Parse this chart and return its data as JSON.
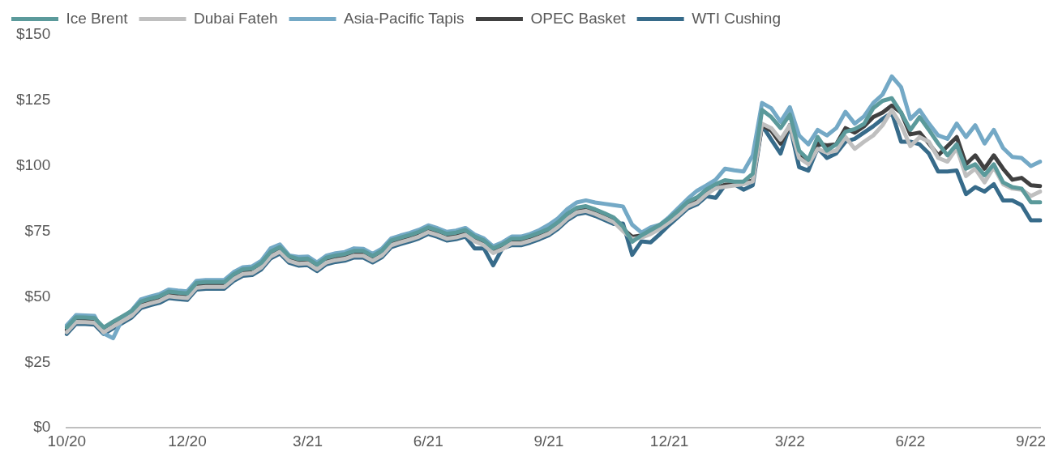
{
  "chart_data": {
    "type": "line",
    "legend": "top",
    "grid": false,
    "categories": [
      "10/20",
      null,
      null,
      null,
      null,
      null,
      null,
      null,
      null,
      null,
      null,
      null,
      null,
      "12/20",
      null,
      null,
      null,
      null,
      null,
      null,
      null,
      null,
      null,
      null,
      null,
      null,
      "3/21",
      null,
      null,
      null,
      null,
      null,
      null,
      null,
      null,
      null,
      null,
      null,
      null,
      "6/21",
      null,
      null,
      null,
      null,
      null,
      null,
      null,
      null,
      null,
      null,
      null,
      null,
      "9/21",
      null,
      null,
      null,
      null,
      null,
      null,
      null,
      null,
      null,
      null,
      null,
      null,
      "12/21",
      null,
      null,
      null,
      null,
      null,
      null,
      null,
      null,
      null,
      null,
      null,
      null,
      "3/22",
      null,
      null,
      null,
      null,
      null,
      null,
      null,
      null,
      null,
      null,
      null,
      null,
      "6/22",
      null,
      null,
      null,
      null,
      null,
      null,
      null,
      null,
      null,
      null,
      null,
      null,
      "9/22",
      null
    ],
    "ylim": [
      0,
      150
    ],
    "yticks": [
      {
        "value": 0,
        "label": "$0"
      },
      {
        "value": 25,
        "label": "$25"
      },
      {
        "value": 50,
        "label": "$50"
      },
      {
        "value": 75,
        "label": "$75"
      },
      {
        "value": 100,
        "label": "$100"
      },
      {
        "value": 125,
        "label": "$125"
      },
      {
        "value": 150,
        "label": "$150"
      }
    ],
    "series": [
      {
        "name": "Ice Brent",
        "color": "#5b9a9b",
        "values": [
          38.3,
          42.2,
          42.1,
          41.9,
          38.3,
          40.5,
          42.5,
          44.6,
          48.2,
          49.3,
          50.2,
          52,
          51.6,
          51.3,
          55.3,
          55.6,
          55.6,
          55.6,
          58.6,
          60.5,
          60.8,
          63,
          67.2,
          69,
          65.5,
          64.4,
          64.6,
          62.3,
          64.9,
          65.8,
          66.3,
          67.5,
          67.5,
          65.6,
          67.6,
          71.5,
          72.6,
          73.6,
          74.8,
          76.5,
          75.4,
          74,
          74.5,
          75.5,
          73,
          71.5,
          68.5,
          70,
          72.2,
          72.2,
          73.2,
          74.5,
          76,
          78.5,
          81.7,
          84,
          84.6,
          83.4,
          81.9,
          80.3,
          76.9,
          71,
          73.5,
          75.5,
          77.5,
          80,
          83,
          86.3,
          88,
          91,
          93,
          94.5,
          94,
          94,
          97,
          121.3,
          118.6,
          114.4,
          119.6,
          105.8,
          102.3,
          111,
          105.8,
          108.2,
          113,
          114,
          116,
          122,
          124.8,
          125.8,
          120.3,
          113.7,
          118.6,
          113.7,
          108.5,
          104,
          108.2,
          98.9,
          100.6,
          96.4,
          100.6,
          93.7,
          91.9,
          91.3,
          86.1,
          86.1
        ]
      },
      {
        "name": "Dubai Fateh",
        "color": "#bfbfbf",
        "values": [
          36.5,
          40.4,
          40.3,
          40.1,
          36.5,
          38.7,
          40.7,
          42.8,
          46.4,
          47.5,
          48.4,
          50.2,
          49.8,
          49.5,
          53.5,
          53.8,
          53.8,
          53.8,
          56.8,
          58.7,
          59,
          61.2,
          65.4,
          67.2,
          63.7,
          62.6,
          62.8,
          60.5,
          63.1,
          64,
          64.5,
          65.7,
          65.7,
          63.8,
          65.8,
          69.7,
          70.8,
          71.8,
          73,
          74.7,
          73.6,
          72.2,
          72.7,
          73.7,
          71.2,
          69.7,
          66.7,
          68.2,
          70.4,
          70.4,
          71.4,
          72.7,
          74.2,
          76.7,
          79.9,
          82.2,
          82.8,
          81.6,
          80.1,
          78.5,
          75.1,
          72.1,
          72.6,
          74,
          76,
          78.5,
          81.3,
          84.5,
          86,
          89.1,
          91.5,
          92,
          92.5,
          93,
          94,
          116.1,
          114.4,
          110,
          115.5,
          103,
          100.6,
          106.5,
          105,
          105.8,
          111,
          106.5,
          109.2,
          111.6,
          115.5,
          121.3,
          115.5,
          107.5,
          111,
          109.2,
          103,
          101.6,
          106.8,
          96.1,
          98.9,
          93.7,
          99.5,
          93,
          91.3,
          90.9,
          88.5,
          90.2
        ]
      },
      {
        "name": "Asia-Pacific Tapis",
        "color": "#74a9c6",
        "values": [
          39.1,
          43,
          42.9,
          42.7,
          36,
          34.2,
          41.5,
          44.8,
          49,
          50.1,
          51,
          52.8,
          52.4,
          52.1,
          56.1,
          56.4,
          56.4,
          56.4,
          59.4,
          61.3,
          61.6,
          63.8,
          68.5,
          70,
          65.8,
          65.2,
          65.4,
          63.1,
          65.7,
          66.6,
          67.1,
          68.5,
          68.3,
          66.4,
          68.4,
          72.3,
          73.4,
          74.4,
          75.6,
          77.3,
          76.2,
          74.8,
          75.3,
          76.3,
          73.8,
          72.3,
          69.3,
          70.8,
          73,
          73,
          74,
          75.5,
          77.5,
          80,
          83.5,
          86,
          86.8,
          86,
          85.5,
          85,
          84.5,
          77.5,
          74.5,
          76.5,
          77.5,
          80.5,
          84,
          87.5,
          90.5,
          92.5,
          94.7,
          98.9,
          98.3,
          97.8,
          104,
          124,
          122,
          116.8,
          122.4,
          111.6,
          108.2,
          113.7,
          111.6,
          114.4,
          120.6,
          116.1,
          118.9,
          124,
          127.2,
          134.1,
          130,
          117.9,
          121.3,
          116.1,
          111.6,
          110.3,
          116.1,
          111,
          115.5,
          108.5,
          113.7,
          106.8,
          103.4,
          103,
          99.9,
          101.6
        ]
      },
      {
        "name": "OPEC Basket",
        "color": "#404040",
        "values": [
          37.3,
          41.2,
          41.1,
          40.9,
          37.3,
          39.5,
          41.5,
          43.6,
          47.2,
          48.3,
          49.2,
          51,
          50.6,
          50.3,
          54.3,
          54.6,
          54.6,
          54.6,
          57.6,
          59.5,
          59.8,
          62,
          66.2,
          68,
          64.5,
          63.4,
          63.6,
          61.3,
          63.9,
          64.8,
          65.3,
          66.5,
          66.5,
          64.6,
          66.6,
          70.5,
          71.6,
          72.6,
          73.8,
          75.5,
          74.4,
          73,
          73.5,
          74.5,
          72,
          70.5,
          67.5,
          69,
          71.2,
          71.2,
          72.2,
          73.5,
          75,
          77.5,
          80.7,
          83,
          83.6,
          82.4,
          80.9,
          79.3,
          75.9,
          72.9,
          73.4,
          74.8,
          76.8,
          79.3,
          82.1,
          85.3,
          86.8,
          89.9,
          91.5,
          92.8,
          93,
          93.7,
          94.4,
          115.5,
          113.4,
          108.5,
          115.5,
          104,
          101.3,
          108.5,
          107.8,
          108.2,
          114.4,
          112.7,
          115.1,
          118.6,
          120.3,
          123,
          120.3,
          112,
          112.7,
          108.5,
          104,
          107.5,
          111,
          100.6,
          104,
          98.9,
          104,
          98.9,
          94.7,
          95.4,
          92.6,
          92.3
        ]
      },
      {
        "name": "WTI Cushing",
        "color": "#376b8a",
        "values": [
          35.8,
          39.7,
          39.6,
          39.4,
          35.8,
          38,
          40,
          42.1,
          45.7,
          46.8,
          47.7,
          49.5,
          49.1,
          48.8,
          52.8,
          53.1,
          53.1,
          53.1,
          56.1,
          58,
          58.3,
          60.5,
          64.7,
          66.5,
          63,
          61.9,
          62.1,
          59.8,
          62.4,
          63.3,
          63.8,
          65,
          65,
          63.1,
          65.1,
          69,
          70.1,
          71.1,
          72.3,
          74,
          72.9,
          71.5,
          72,
          73,
          68.5,
          68.5,
          62,
          68.5,
          69.7,
          69.7,
          70.7,
          72,
          73.5,
          76,
          79.2,
          81.5,
          82.1,
          80.9,
          79.4,
          77.8,
          78,
          66,
          71.2,
          70.8,
          74,
          77.5,
          80.6,
          83.8,
          85.3,
          88.4,
          87.8,
          92.6,
          93,
          90.9,
          92.6,
          115.5,
          110,
          104.7,
          115.5,
          99.5,
          98.2,
          106.8,
          103,
          104.7,
          109.2,
          110.3,
          112.7,
          115.1,
          117.9,
          120.3,
          109.2,
          109.2,
          108.2,
          104.7,
          97.8,
          97.8,
          98.2,
          89.2,
          91.9,
          90.2,
          93,
          86.8,
          86.8,
          85,
          79.2,
          79.2
        ]
      }
    ]
  }
}
